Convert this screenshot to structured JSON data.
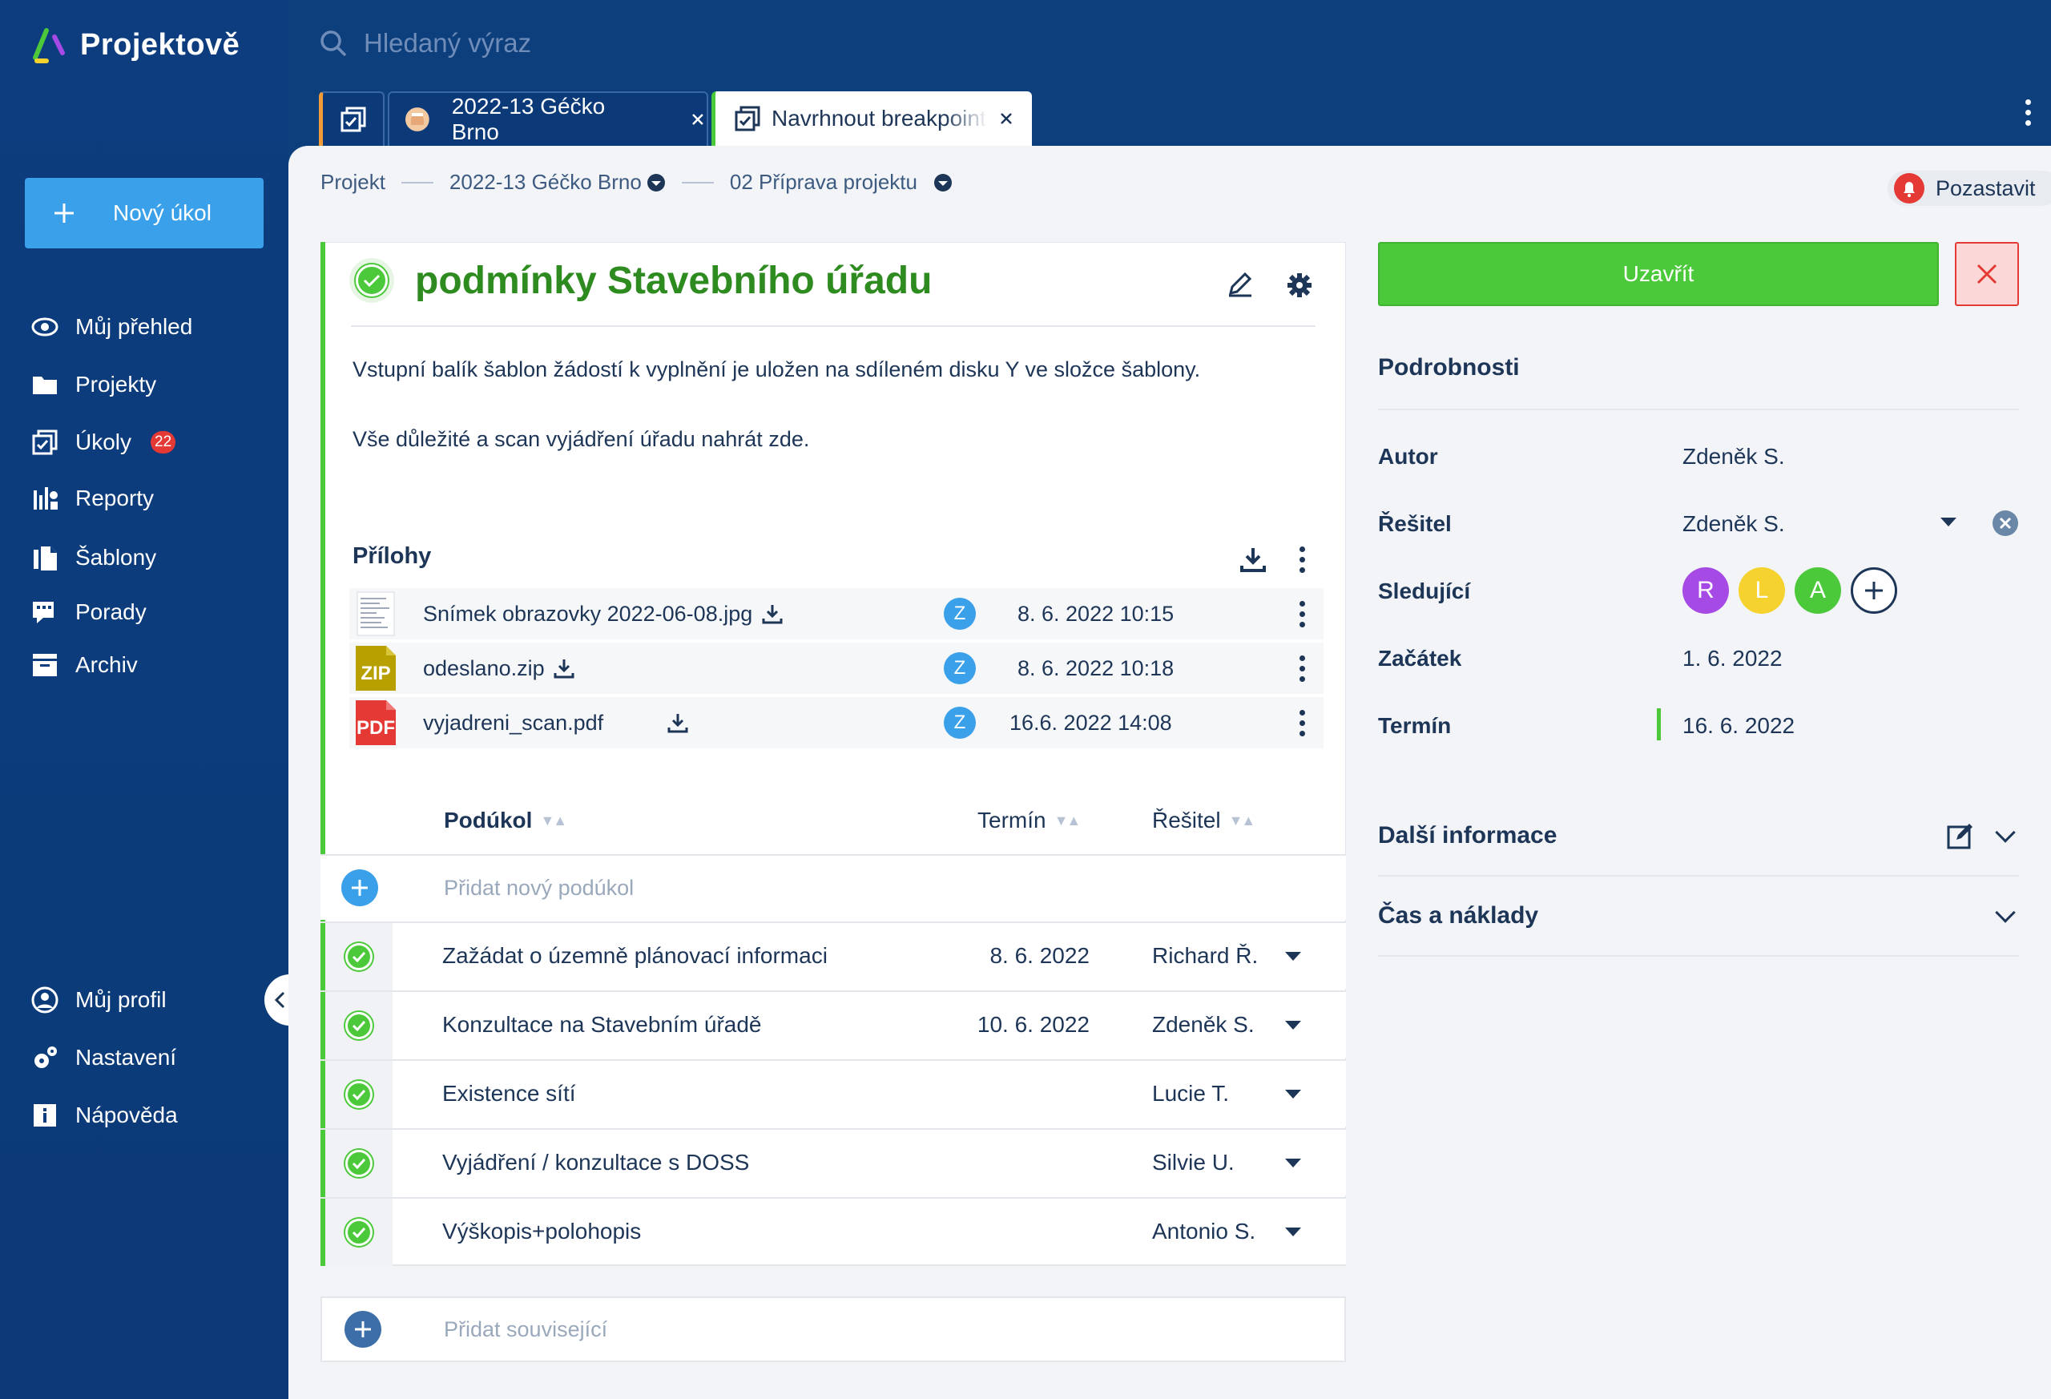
{
  "app": {
    "name": "Projektově"
  },
  "search": {
    "placeholder": "Hledaný výraz"
  },
  "tabs": [
    {
      "label": ""
    },
    {
      "label": "2022-13 Géčko Brno"
    },
    {
      "label": "Navrhnout breakpoint"
    }
  ],
  "sidebar": {
    "new_task": "Nový úkol",
    "items": [
      {
        "label": "Můj přehled"
      },
      {
        "label": "Projekty"
      },
      {
        "label": "Úkoly",
        "badge": "22"
      },
      {
        "label": "Reporty"
      },
      {
        "label": "Šablony"
      },
      {
        "label": "Porady"
      },
      {
        "label": "Archiv"
      }
    ],
    "bottom_items": [
      {
        "label": "Můj profil"
      },
      {
        "label": "Nastavení"
      },
      {
        "label": "Nápověda"
      }
    ]
  },
  "breadcrumb": {
    "root": "Projekt",
    "project": "2022-13 Géčko Brno",
    "phase": "02 Příprava projektu"
  },
  "pause_button": "Pozastavit",
  "task": {
    "title": "podmínky Stavebního úřadu",
    "description_1": "Vstupní balík šablon žádostí k vyplnění je uložen na sdíleném disku Y ve složce šablony.",
    "description_2": "Vše důležité a scan vyjádření úřadu nahrát zde."
  },
  "attachments": {
    "heading": "Přílohy",
    "files": [
      {
        "name": "Snímek obrazovky 2022-06-08.jpg",
        "user": "Z",
        "date": "8. 6. 2022 10:15",
        "type": "image"
      },
      {
        "name": "odeslano.zip",
        "user": "Z",
        "date": "8. 6. 2022 10:18",
        "type": "ZIP"
      },
      {
        "name": "vyjadreni_scan.pdf",
        "user": "Z",
        "date": "16.6. 2022 14:08",
        "type": "PDF"
      }
    ]
  },
  "subtasks": {
    "col_name": "Podúkol",
    "col_date": "Termín",
    "col_user": "Řešitel",
    "add_placeholder": "Přidat nový podúkol",
    "rows": [
      {
        "name": "Zažádat o územně plánovací informaci",
        "date": "8. 6. 2022",
        "user": "Richard Ř."
      },
      {
        "name": "Konzultace na Stavebním úřadě",
        "date": "10. 6. 2022",
        "user": "Zdeněk S."
      },
      {
        "name": "Existence sítí",
        "date": "",
        "user": "Lucie T."
      },
      {
        "name": "Vyjádření / konzultace s DOSS",
        "date": "",
        "user": "Silvie U."
      },
      {
        "name": "Výškopis+polohopis",
        "date": "",
        "user": "Antonio S."
      }
    ]
  },
  "related": {
    "placeholder": "Přidat související"
  },
  "details": {
    "close_button": "Uzavřít",
    "heading": "Podrobnosti",
    "author_label": "Autor",
    "author_value": "Zdeněk S.",
    "solver_label": "Řešitel",
    "solver_value": "Zdeněk S.",
    "followers_label": "Sledující",
    "followers": [
      {
        "initial": "R",
        "color": "#a64ae6"
      },
      {
        "initial": "L",
        "color": "#f5d22e"
      },
      {
        "initial": "A",
        "color": "#4cc93a"
      }
    ],
    "start_label": "Začátek",
    "start_value": "1. 6. 2022",
    "deadline_label": "Termín",
    "deadline_value": "16. 6. 2022",
    "more_info": "Další informace",
    "time_costs": "Čas a náklady"
  },
  "colors": {
    "accent_green": "#4cc93a",
    "brand_blue": "#0e3f7d",
    "link_blue": "#3aa0ea",
    "danger": "#e53935"
  }
}
